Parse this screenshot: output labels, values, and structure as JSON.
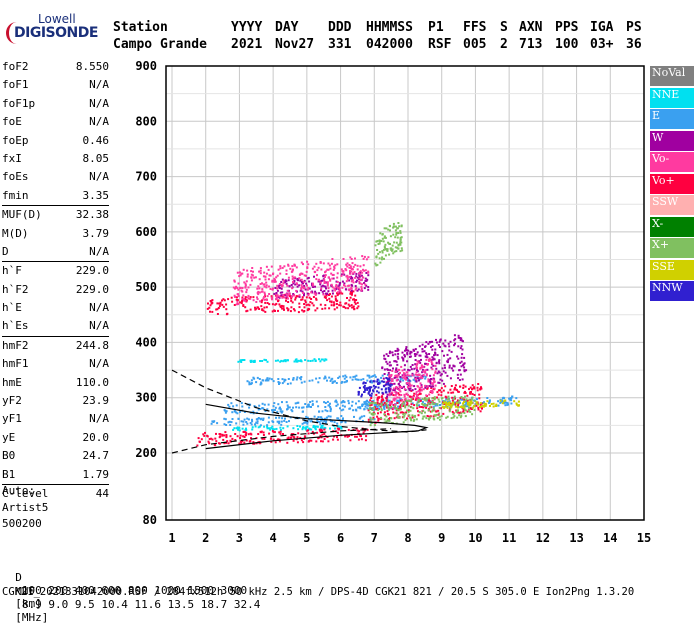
{
  "logo": {
    "line1": "Lowell",
    "line2": "DIGISONDE"
  },
  "header": {
    "row1": [
      "Station",
      "YYYY",
      "DAY",
      "DDD",
      "HHMMSS",
      "P1",
      "FFS",
      "S",
      "AXN",
      "PPS",
      "IGA",
      "PS"
    ],
    "row2": [
      "Campo Grande",
      "2021",
      "Nov27",
      "331",
      "042000",
      "RSF",
      "005",
      "2",
      "713",
      "100",
      "03+",
      "36"
    ]
  },
  "params": [
    {
      "name": "foF2",
      "value": "8.550"
    },
    {
      "name": "foF1",
      "value": "N/A"
    },
    {
      "name": "foF1p",
      "value": "N/A"
    },
    {
      "name": "foE",
      "value": "N/A"
    },
    {
      "name": "foEp",
      "value": "0.46"
    },
    {
      "name": "fxI",
      "value": "8.05"
    },
    {
      "name": "foEs",
      "value": "N/A"
    },
    {
      "name": "fmin",
      "value": "3.35"
    },
    {
      "name": "MUF(D)",
      "value": "32.38"
    },
    {
      "name": "M(D)",
      "value": "3.79"
    },
    {
      "name": "D",
      "value": "N/A"
    },
    {
      "name": "h`F",
      "value": "229.0"
    },
    {
      "name": "h`F2",
      "value": "229.0"
    },
    {
      "name": "h`E",
      "value": "N/A"
    },
    {
      "name": "h`Es",
      "value": "N/A"
    },
    {
      "name": "hmF2",
      "value": "244.8"
    },
    {
      "name": "hmF1",
      "value": "N/A"
    },
    {
      "name": "hmE",
      "value": "110.0"
    },
    {
      "name": "yF2",
      "value": "23.9"
    },
    {
      "name": "yF1",
      "value": "N/A"
    },
    {
      "name": "yE",
      "value": "20.0"
    },
    {
      "name": "B0",
      "value": "24.7"
    },
    {
      "name": "B1",
      "value": "1.79"
    },
    {
      "name": "C-level",
      "value": "44"
    }
  ],
  "autoscaler": {
    "line1": "Auto:",
    "line2": "Artist5",
    "line3": "500200"
  },
  "legend": [
    {
      "label": "NoVal",
      "color": "#808080"
    },
    {
      "label": "NNE",
      "color": "#00e0f0"
    },
    {
      "label": "E",
      "color": "#3aa0f0"
    },
    {
      "label": "W",
      "color": "#a000a0"
    },
    {
      "label": "Vo-",
      "color": "#ff3aa0"
    },
    {
      "label": "Vo+",
      "color": "#ff0040"
    },
    {
      "label": "SSW",
      "color": "#ffb0b0"
    },
    {
      "label": "X-",
      "color": "#008000"
    },
    {
      "label": "X+",
      "color": "#80c060"
    },
    {
      "label": "SSE",
      "color": "#d0d000"
    },
    {
      "label": "NNW",
      "color": "#3020d0"
    }
  ],
  "footer": {
    "d_label": "D",
    "d_values": [
      "100",
      "200",
      "400",
      "600",
      "800",
      "1000",
      "1500",
      "3000"
    ],
    "d_unit": "[km]",
    "muf_label": "MUF",
    "muf_values": [
      "8.9",
      "9.0",
      "9.5",
      "10.4",
      "11.6",
      "13.5",
      "18.7",
      "32.4"
    ],
    "muf_unit": "[MHz]",
    "info": "CGK21_2021331042000.RSF / 284fx512h 50 kHz 2.5 km / DPS-4D CGK21 821 / 20.5 S 305.0 E Ion2Png 1.3.20"
  },
  "chart_data": {
    "type": "scatter",
    "xlim": [
      1,
      15
    ],
    "ylim": [
      80,
      900
    ],
    "x_ticks": [
      1,
      2,
      3,
      4,
      5,
      6,
      7,
      8,
      9,
      10,
      11,
      12,
      13,
      14,
      15
    ],
    "y_ticks": [
      80,
      200,
      300,
      400,
      500,
      600,
      700,
      800,
      900
    ],
    "grid": true,
    "series": [
      {
        "name": "E",
        "color": "#3aa0f0",
        "regions": [
          {
            "x": [
              2.1,
              7.0
            ],
            "y": [
              250,
              270
            ]
          },
          {
            "x": [
              2.5,
              7.8
            ],
            "y": [
              272,
              300
            ]
          },
          {
            "x": [
              3.2,
              8.6
            ],
            "y": [
              325,
              345
            ]
          },
          {
            "x": [
              6.6,
              11.2
            ],
            "y": [
              280,
              305
            ]
          }
        ]
      },
      {
        "name": "NNE",
        "color": "#00e0f0",
        "regions": [
          {
            "x": [
              2.9,
              5.7
            ],
            "y": [
              366,
              372
            ]
          },
          {
            "x": [
              2.5,
              6.0
            ],
            "y": [
              242,
              252
            ]
          }
        ]
      },
      {
        "name": "Vo+",
        "color": "#ff0040",
        "regions": [
          {
            "x": [
              1.7,
              6.8
            ],
            "y": [
              215,
              248
            ]
          },
          {
            "x": [
              6.8,
              10.2
            ],
            "y": [
              255,
              330
            ]
          },
          {
            "x": [
              2.0,
              6.5
            ],
            "y": [
              448,
              495
            ]
          }
        ]
      },
      {
        "name": "W",
        "color": "#a000a0",
        "regions": [
          {
            "x": [
              7.2,
              9.7
            ],
            "y": [
              300,
              420
            ]
          },
          {
            "x": [
              4.0,
              6.8
            ],
            "y": [
              480,
              530
            ]
          }
        ]
      },
      {
        "name": "Vo-",
        "color": "#ff3aa0",
        "regions": [
          {
            "x": [
              7.4,
              8.8
            ],
            "y": [
              280,
              380
            ]
          },
          {
            "x": [
              2.8,
              6.8
            ],
            "y": [
              470,
              560
            ]
          }
        ]
      },
      {
        "name": "X+",
        "color": "#80c060",
        "regions": [
          {
            "x": [
              6.8,
              10.0
            ],
            "y": [
              250,
              310
            ]
          },
          {
            "x": [
              7.0,
              7.8
            ],
            "y": [
              540,
              625
            ]
          }
        ]
      },
      {
        "name": "SSE",
        "color": "#d0d000",
        "regions": [
          {
            "x": [
              9.0,
              11.3
            ],
            "y": [
              282,
              298
            ]
          }
        ]
      },
      {
        "name": "NNW",
        "color": "#3020d0",
        "regions": [
          {
            "x": [
              6.5,
              7.5
            ],
            "y": [
              300,
              340
            ]
          }
        ]
      }
    ],
    "profile_dashed": [
      [
        1.0,
        350
      ],
      [
        2.0,
        318
      ],
      [
        3.5,
        282
      ],
      [
        5.0,
        258
      ],
      [
        6.0,
        248
      ],
      [
        7.0,
        242
      ],
      [
        8.0,
        238
      ],
      [
        8.55,
        242
      ]
    ],
    "profile_dashed_lower": [
      [
        1.0,
        200
      ],
      [
        2.0,
        215
      ],
      [
        4.0,
        230
      ],
      [
        6.0,
        240
      ],
      [
        7.5,
        244
      ]
    ],
    "trace_solid": [
      [
        2.0,
        288
      ],
      [
        3.5,
        272
      ],
      [
        5.0,
        262
      ],
      [
        6.2,
        258
      ],
      [
        7.4,
        254
      ],
      [
        8.2,
        250
      ],
      [
        8.55,
        246
      ],
      [
        8.3,
        240
      ],
      [
        6.0,
        232
      ],
      [
        4.0,
        222
      ],
      [
        2.0,
        208
      ]
    ]
  }
}
